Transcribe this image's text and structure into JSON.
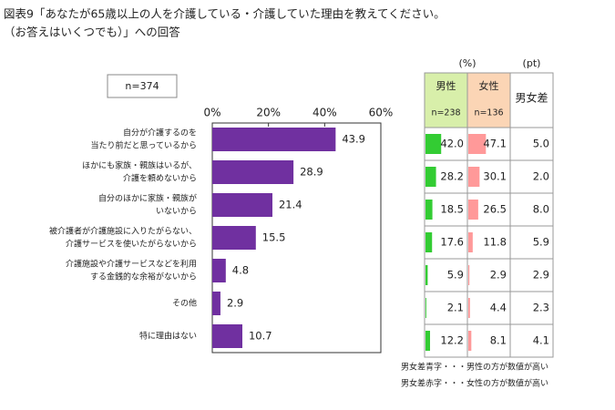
{
  "title": [
    "図表9「あなたが65歳以上の人を介護している・介護していた理由を教えてください。",
    "（お答えはいくつでも）」への回答"
  ],
  "sample": "n=374",
  "chart_data": [
    {
      "type": "bar",
      "categories": [
        [
          "自分が介護するのを",
          "当たり前だと思っているから"
        ],
        [
          "ほかにも家族・親族はいるが、",
          "介護を頼めないから"
        ],
        [
          "自分のほかに家族・親族が",
          "いないから"
        ],
        [
          "被介護者が介護施設に入りたがらない、",
          "介護サービスを使いたがらないから"
        ],
        [
          "介護施設や介護サービスなどを利用",
          "する金銭的な余裕がないから"
        ],
        [
          "その他"
        ],
        [
          "特に理由はない"
        ]
      ],
      "values": [
        43.9,
        28.9,
        21.4,
        15.5,
        4.8,
        2.9,
        10.7
      ],
      "color": "#7030a0",
      "xlim": [
        0,
        60
      ],
      "xticks": [
        {
          "value": 0,
          "label": "0%"
        },
        {
          "value": 20,
          "label": "20%"
        },
        {
          "value": 40,
          "label": "40%"
        },
        {
          "value": 60,
          "label": "60%"
        }
      ]
    },
    {
      "type": "table",
      "unit_pct": "(%)",
      "unit_pt": "(pt)",
      "xlim": [
        0,
        100
      ],
      "series": [
        {
          "name": "男性",
          "subtitle": "n=238",
          "color": "#33cc33",
          "header_color": "#d8efaa",
          "values": [
            42,
            28.2,
            18.5,
            17.6,
            5.9,
            2.1,
            12.2
          ],
          "value_labels": [
            "42.0",
            "28.2",
            "18.5",
            "17.6",
            "5.9",
            "2.1",
            "12.2"
          ]
        },
        {
          "name": "女性",
          "subtitle": "n=136",
          "color": "#ff9999",
          "header_color": "#fbd5b5",
          "values": [
            47.1,
            30.1,
            26.5,
            11.8,
            2.9,
            4.4,
            8.1
          ],
          "value_labels": [
            "47.1",
            "30.1",
            "26.5",
            "11.8",
            "2.9",
            "4.4",
            "8.1"
          ]
        },
        {
          "name": "男女差",
          "values": [
            5,
            2,
            8,
            5.9,
            2.9,
            2.3,
            4.1
          ],
          "value_labels": [
            "5.0",
            "2.0",
            "8.0",
            "5.9",
            "2.9",
            "2.3",
            "4.1"
          ],
          "colors": [
            "#e0303a",
            "#e0303a",
            "#e0303a",
            "#2e86c1",
            "#2e86c1",
            "#e0303a",
            "#2e86c1"
          ]
        }
      ],
      "notes": [
        {
          "text": "男女差青字・・・男性の方が数値が高い",
          "color": "#2e86c1"
        },
        {
          "text": "男女差赤字・・・女性の方が数値が高い",
          "color": "#e0303a"
        }
      ]
    }
  ]
}
